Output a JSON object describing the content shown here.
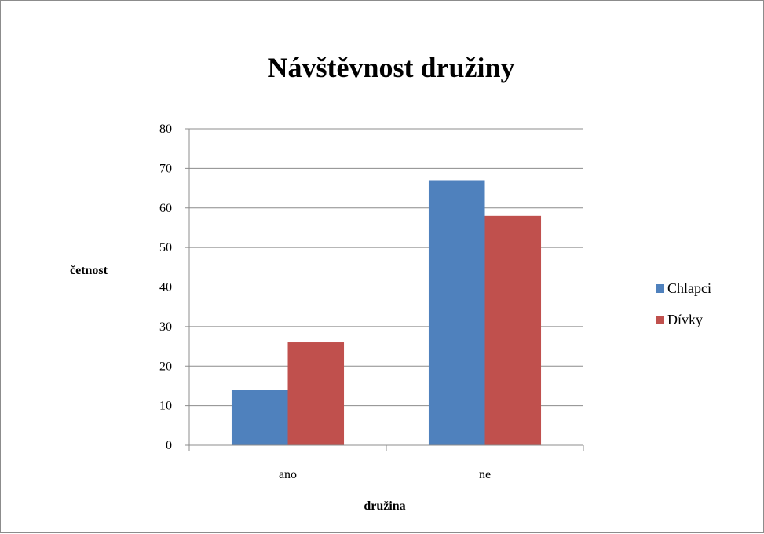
{
  "chart_data": {
    "type": "bar",
    "title": "Návštěvnost družiny",
    "xlabel": "družina",
    "ylabel": "četnost",
    "categories": [
      "ano",
      "ne"
    ],
    "series": [
      {
        "name": "Chlapci",
        "color": "#4f81bd",
        "values": [
          14,
          67
        ]
      },
      {
        "name": "Dívky",
        "color": "#c0504d",
        "values": [
          26,
          58
        ]
      }
    ],
    "ylim": [
      0,
      80
    ],
    "yticks": [
      0,
      10,
      20,
      30,
      40,
      50,
      60,
      70,
      80
    ],
    "grid": true,
    "legend_position": "right"
  }
}
